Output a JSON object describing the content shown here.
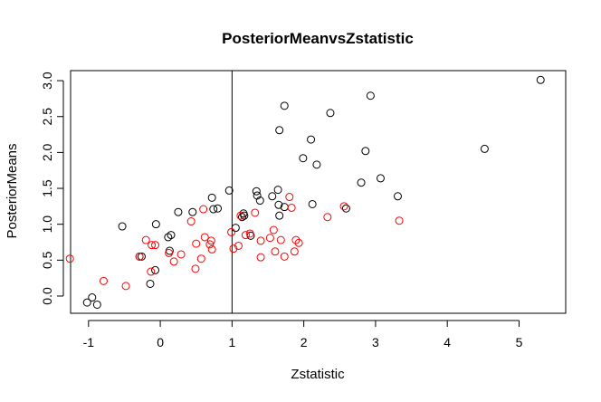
{
  "chart_data": {
    "type": "scatter",
    "title": "PosteriorMeanvsZstatistic",
    "xlabel": "Zstatistic",
    "ylabel": "PosteriorMeans",
    "xlim": [
      -1.25,
      5.65
    ],
    "ylim": [
      -0.24,
      3.14
    ],
    "x_ticks": [
      -1,
      0,
      1,
      2,
      3,
      4,
      5
    ],
    "x_tick_labels": [
      "-1",
      "0",
      "1",
      "2",
      "3",
      "4",
      "5"
    ],
    "y_ticks": [
      0.0,
      0.5,
      1.0,
      1.5,
      2.0,
      2.5,
      3.0
    ],
    "y_tick_labels": [
      "0.0",
      "0.5",
      "1.0",
      "1.5",
      "2.0",
      "2.5",
      "3.0"
    ],
    "vline_x": 1,
    "marker": "open-circle",
    "series": [
      {
        "color": "#000000",
        "points": [
          [
            -1.02,
            -0.09
          ],
          [
            -0.95,
            -0.02
          ],
          [
            -0.88,
            -0.12
          ],
          [
            -0.53,
            0.97
          ],
          [
            -0.29,
            0.55
          ],
          [
            -0.26,
            0.55
          ],
          [
            -0.14,
            0.17
          ],
          [
            -0.07,
            0.36
          ],
          [
            -0.06,
            1.0
          ],
          [
            0.11,
            0.82
          ],
          [
            0.13,
            0.63
          ],
          [
            0.15,
            0.85
          ],
          [
            0.25,
            1.17
          ],
          [
            0.45,
            1.17
          ],
          [
            0.72,
            1.37
          ],
          [
            0.74,
            1.21
          ],
          [
            0.8,
            1.22
          ],
          [
            0.96,
            1.47
          ],
          [
            1.05,
            0.95
          ],
          [
            1.14,
            1.1
          ],
          [
            1.16,
            1.15
          ],
          [
            1.17,
            1.12
          ],
          [
            1.26,
            0.84
          ],
          [
            1.34,
            1.46
          ],
          [
            1.35,
            1.4
          ],
          [
            1.39,
            1.33
          ],
          [
            1.56,
            1.39
          ],
          [
            1.64,
            1.48
          ],
          [
            1.65,
            1.27
          ],
          [
            1.66,
            1.12
          ],
          [
            1.66,
            2.31
          ],
          [
            1.73,
            2.65
          ],
          [
            1.73,
            1.24
          ],
          [
            1.99,
            1.92
          ],
          [
            2.1,
            2.18
          ],
          [
            2.12,
            1.28
          ],
          [
            2.18,
            1.83
          ],
          [
            2.37,
            2.55
          ],
          [
            2.59,
            1.22
          ],
          [
            2.8,
            1.58
          ],
          [
            2.86,
            2.02
          ],
          [
            2.93,
            2.79
          ],
          [
            3.07,
            1.64
          ],
          [
            3.31,
            1.39
          ],
          [
            4.52,
            2.05
          ],
          [
            5.3,
            3.01
          ]
        ]
      },
      {
        "color": "#ff0000",
        "points": [
          [
            -1.26,
            0.52
          ],
          [
            -0.79,
            0.21
          ],
          [
            -0.48,
            0.14
          ],
          [
            -0.29,
            0.55
          ],
          [
            -0.2,
            0.78
          ],
          [
            -0.13,
            0.34
          ],
          [
            -0.12,
            0.71
          ],
          [
            -0.07,
            0.71
          ],
          [
            0.12,
            0.6
          ],
          [
            0.19,
            0.48
          ],
          [
            0.29,
            0.58
          ],
          [
            0.43,
            1.04
          ],
          [
            0.49,
            0.38
          ],
          [
            0.5,
            0.73
          ],
          [
            0.57,
            0.52
          ],
          [
            0.6,
            1.21
          ],
          [
            0.62,
            0.82
          ],
          [
            0.69,
            0.72
          ],
          [
            0.71,
            0.77
          ],
          [
            0.72,
            0.65
          ],
          [
            0.99,
            0.89
          ],
          [
            1.02,
            0.66
          ],
          [
            1.09,
            0.7
          ],
          [
            1.12,
            1.12
          ],
          [
            1.19,
            0.85
          ],
          [
            1.25,
            0.87
          ],
          [
            1.32,
            1.16
          ],
          [
            1.4,
            0.77
          ],
          [
            1.4,
            0.54
          ],
          [
            1.53,
            0.81
          ],
          [
            1.58,
            0.92
          ],
          [
            1.6,
            0.62
          ],
          [
            1.68,
            0.78
          ],
          [
            1.73,
            0.55
          ],
          [
            1.8,
            1.38
          ],
          [
            1.83,
            1.23
          ],
          [
            1.87,
            0.62
          ],
          [
            1.89,
            0.78
          ],
          [
            1.93,
            0.74
          ],
          [
            2.33,
            1.1
          ],
          [
            2.56,
            1.25
          ],
          [
            3.33,
            1.05
          ]
        ]
      }
    ]
  }
}
